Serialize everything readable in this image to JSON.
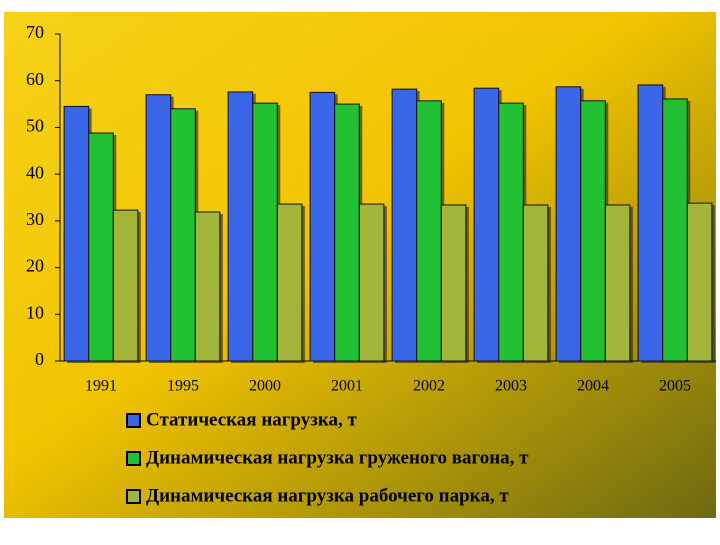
{
  "chart_data": {
    "type": "bar",
    "categories": [
      "1991",
      "1995",
      "2000",
      "2001",
      "2002",
      "2003",
      "2004",
      "2005"
    ],
    "series": [
      {
        "name": "Статическая нагрузка, т",
        "color": "#3a66e8",
        "values": [
          54.5,
          57,
          57.6,
          57.5,
          58.2,
          58.4,
          58.7,
          59.1
        ]
      },
      {
        "name": "Динамическая нагрузка груженого вагона, т",
        "color": "#22c033",
        "values": [
          48.8,
          54,
          55.2,
          55,
          55.7,
          55.2,
          55.7,
          56.1
        ]
      },
      {
        "name": "Динамическая нагрузка рабочего парка, т",
        "color": "#a3b43a",
        "values": [
          32.3,
          31.9,
          33.6,
          33.6,
          33.4,
          33.4,
          33.4,
          33.8
        ]
      }
    ],
    "ylim": [
      0,
      70
    ],
    "yticks": [
      0,
      10,
      20,
      30,
      40,
      50,
      60,
      70
    ],
    "legend": "bottom"
  }
}
